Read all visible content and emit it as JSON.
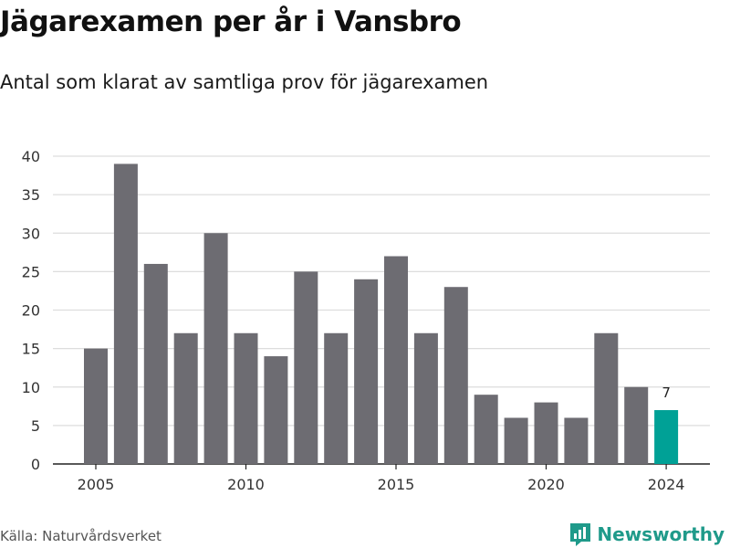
{
  "title": "Jägarexamen per år i Vansbro",
  "subtitle": "Antal som klarat av samtliga prov för jägarexamen",
  "source": "Källa: Naturvårdsverket",
  "brand": "Newsworthy",
  "colors": {
    "bar": "#6d6c72",
    "highlight": "#00a196",
    "grid": "#dddddd",
    "brand": "#1f9a8a"
  },
  "chart_data": {
    "type": "bar",
    "x": [
      2005,
      2006,
      2007,
      2008,
      2009,
      2010,
      2011,
      2012,
      2013,
      2014,
      2015,
      2016,
      2017,
      2018,
      2019,
      2020,
      2021,
      2022,
      2023,
      2024
    ],
    "values": [
      15,
      39,
      26,
      17,
      30,
      17,
      14,
      25,
      17,
      24,
      27,
      17,
      23,
      9,
      6,
      8,
      6,
      17,
      10,
      7
    ],
    "highlight_index": 19,
    "highlight_label": "7",
    "x_ticks": [
      "2005",
      "2010",
      "2015",
      "2020",
      "2024"
    ],
    "y_ticks": [
      "0",
      "5",
      "10",
      "15",
      "20",
      "25",
      "30",
      "35",
      "40"
    ],
    "ylim": [
      0,
      40
    ],
    "xlabel": "",
    "ylabel": "",
    "grid": true
  }
}
